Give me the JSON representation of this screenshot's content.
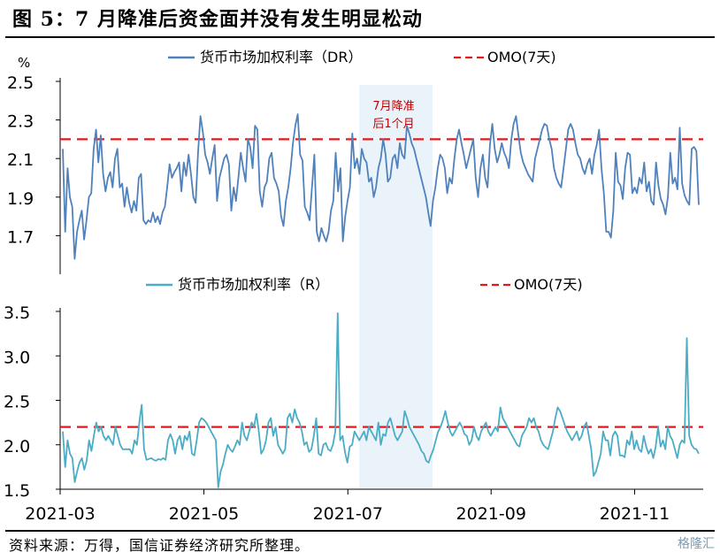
{
  "figure_title": "图 5：7 月降准后资金面并没有发生明显松动",
  "source_note": "资料来源：万得，国信证券经济研究所整理。",
  "watermark": "格隆汇",
  "colors": {
    "dr": "#4f81bd",
    "r": "#4bacc6",
    "omo": "#e31a1c",
    "band": "#eaf3fa",
    "annotation": "#c00000"
  },
  "chart_data": [
    {
      "type": "line",
      "panel": "top",
      "yunit": "%",
      "ylim": [
        1.5,
        2.5
      ],
      "yticks": [
        "2.5",
        "2.3",
        "2.1",
        "1.9",
        "1.7"
      ],
      "series": [
        {
          "name": "货币市场加权利率（DR）",
          "values": [
            2.15,
            1.72,
            2.05,
            1.9,
            1.85,
            1.58,
            1.72,
            1.78,
            1.83,
            1.68,
            1.78,
            1.9,
            1.92,
            2.15,
            2.25,
            2.08,
            2.22,
            2.02,
            1.93,
            2.0,
            2.03,
            1.95,
            2.1,
            2.15,
            1.95,
            1.97,
            1.85,
            1.95,
            1.87,
            1.82,
            1.88,
            1.83,
            2.0,
            2.02,
            1.78,
            1.76,
            1.78,
            1.77,
            1.82,
            1.77,
            1.8,
            1.76,
            1.82,
            1.85,
            1.95,
            2.07,
            2.0,
            2.03,
            2.05,
            2.08,
            1.93,
            2.08,
            2.01,
            2.12,
            2.02,
            1.9,
            1.87,
            2.13,
            2.32,
            2.24,
            2.12,
            2.08,
            2.02,
            2.1,
            2.17,
            1.88,
            2.0,
            2.05,
            2.1,
            2.12,
            2.07,
            1.83,
            1.95,
            1.88,
            2.0,
            2.13,
            2.05,
            1.98,
            2.2,
            2.16,
            2.05,
            2.27,
            2.25,
            1.93,
            1.85,
            1.95,
            1.98,
            2.1,
            2.13,
            2.0,
            1.97,
            1.93,
            1.8,
            1.75,
            1.88,
            1.95,
            2.05,
            2.18,
            2.27,
            2.33,
            2.12,
            2.09,
            1.85,
            1.82,
            1.78,
            1.95,
            2.12,
            1.72,
            1.67,
            1.74,
            1.7,
            1.67,
            1.72,
            1.83,
            1.88,
            2.13,
            1.93,
            2.05,
            1.67,
            1.8,
            1.88,
            1.95,
            2.23,
            2.05,
            2.1,
            2.02,
            2.15,
            2.1,
            2.08,
            1.98,
            2.0,
            1.9,
            1.95,
            2.05,
            2.1,
            2.2,
            2.12,
            1.98,
            2.0,
            2.1,
            2.12,
            2.05,
            2.18,
            2.12,
            2.1,
            2.27,
            2.23,
            2.18,
            2.15,
            2.1,
            2.05,
            2.0,
            1.95,
            1.9,
            1.82,
            1.75,
            1.88,
            1.95,
            2.05,
            2.12,
            2.1,
            2.05,
            1.92,
            2.0,
            1.97,
            2.1,
            2.2,
            2.25,
            2.18,
            2.12,
            2.05,
            2.1,
            2.15,
            2.2,
            2.0,
            1.9,
            2.05,
            2.12,
            2.0,
            1.95,
            2.17,
            2.28,
            2.15,
            2.08,
            2.12,
            2.18,
            2.13,
            2.1,
            2.05,
            2.2,
            2.28,
            2.32,
            2.22,
            2.13,
            2.08,
            2.05,
            2.02,
            2.0,
            1.98,
            2.1,
            2.15,
            2.2,
            2.25,
            2.28,
            2.27,
            2.2,
            2.15,
            2.05,
            2.0,
            1.97,
            1.95,
            2.05,
            2.15,
            2.25,
            2.28,
            2.25,
            2.18,
            2.12,
            2.1,
            2.05,
            2.02,
            2.07,
            2.1,
            2.02,
            2.12,
            2.17,
            2.25,
            2.05,
            1.92,
            1.72,
            1.72,
            1.69,
            1.83,
            2.13,
            1.98,
            1.96,
            1.89,
            2.05,
            2.13,
            2.12,
            1.92,
            1.95,
            1.92,
            2.0,
            1.97,
            2.08,
            1.93,
            1.98,
            1.88,
            1.86,
            2.08,
            1.96,
            1.89,
            1.86,
            1.81,
            1.9,
            2.13,
            1.97,
            2.0,
            1.94,
            2.26,
            1.97,
            1.91,
            1.88,
            1.86,
            2.15,
            2.16,
            2.14,
            1.86
          ]
        },
        {
          "name": "OMO(7天)",
          "values": [
            2.2
          ]
        }
      ]
    },
    {
      "type": "line",
      "panel": "bottom",
      "ylim": [
        1.5,
        3.5
      ],
      "yticks": [
        "3.5",
        "3.0",
        "2.5",
        "2.0",
        "1.5"
      ],
      "xticks": [
        "2021-03",
        "2021-05",
        "2021-07",
        "2021-09",
        "2021-11"
      ],
      "series": [
        {
          "name": "货币市场加权利率（R）",
          "values": [
            2.15,
            1.75,
            2.05,
            1.9,
            1.85,
            1.58,
            1.7,
            1.8,
            1.85,
            1.72,
            1.82,
            2.05,
            1.93,
            2.1,
            2.25,
            2.15,
            2.2,
            2.1,
            2.05,
            2.1,
            2.05,
            2.0,
            2.2,
            2.1,
            2.0,
            1.95,
            1.95,
            1.95,
            1.95,
            1.9,
            2.05,
            2.0,
            2.25,
            2.45,
            1.95,
            1.83,
            1.84,
            1.85,
            1.83,
            1.82,
            1.84,
            1.83,
            1.85,
            1.83,
            2.05,
            2.12,
            2.05,
            1.9,
            2.05,
            2.1,
            1.95,
            2.1,
            2.05,
            2.15,
            1.9,
            1.88,
            2.05,
            2.25,
            2.3,
            2.28,
            2.25,
            2.2,
            2.15,
            2.1,
            2.05,
            1.52,
            1.7,
            1.78,
            1.9,
            2.0,
            1.95,
            1.92,
            1.98,
            2.05,
            2.0,
            2.25,
            2.1,
            2.05,
            2.15,
            2.25,
            2.2,
            2.35,
            2.15,
            1.9,
            1.95,
            2.05,
            2.25,
            2.3,
            2.1,
            2.2,
            2.0,
            1.95,
            1.9,
            1.95,
            2.3,
            2.35,
            2.25,
            2.4,
            2.3,
            2.25,
            2.15,
            2.0,
            2.03,
            1.92,
            1.95,
            2.1,
            2.3,
            1.9,
            1.88,
            2.0,
            2.02,
            1.95,
            1.93,
            2.0,
            2.15,
            3.48,
            2.05,
            2.1,
            1.92,
            1.8,
            1.98,
            2.0,
            2.15,
            2.1,
            2.05,
            2.1,
            2.15,
            2.05,
            2.2,
            2.15,
            2.1,
            2.05,
            2.25,
            2.0,
            2.12,
            2.1,
            2.25,
            2.3,
            2.2,
            2.1,
            2.05,
            2.1,
            2.15,
            2.38,
            2.3,
            2.2,
            2.15,
            2.1,
            2.05,
            2.0,
            1.93,
            1.9,
            1.82,
            1.8,
            1.88,
            1.95,
            2.05,
            2.15,
            2.2,
            2.28,
            2.38,
            2.25,
            2.15,
            2.1,
            2.15,
            2.2,
            2.25,
            2.2,
            2.12,
            2.1,
            2.0,
            2.05,
            2.2,
            2.1,
            2.05,
            2.15,
            2.2,
            2.25,
            2.15,
            2.1,
            2.15,
            2.2,
            2.15,
            2.42,
            2.3,
            2.25,
            2.2,
            2.15,
            2.1,
            2.05,
            2.0,
            1.98,
            2.1,
            2.15,
            2.2,
            2.3,
            2.25,
            2.3,
            2.2,
            2.15,
            2.05,
            2.0,
            1.97,
            1.95,
            2.05,
            2.15,
            2.3,
            2.42,
            2.38,
            2.3,
            2.22,
            2.15,
            2.1,
            2.05,
            2.1,
            2.15,
            2.05,
            2.1,
            2.2,
            2.25,
            2.1,
            1.95,
            1.65,
            1.7,
            1.8,
            1.9,
            2.15,
            2.05,
            2.05,
            1.88,
            2.1,
            2.15,
            2.1,
            1.88,
            1.88,
            1.86,
            2.05,
            2.0,
            2.15,
            1.95,
            2.05,
            1.95,
            1.92,
            2.1,
            1.98,
            1.9,
            1.95,
            1.85,
            1.98,
            2.2,
            1.98,
            2.05,
            1.95,
            2.2,
            2.1,
            2.05,
            1.95,
            1.85,
            2.0,
            2.05,
            2.02,
            3.2,
            2.1,
            2.0,
            1.96,
            1.95,
            1.9
          ]
        },
        {
          "name": "OMO(7天)",
          "values": [
            2.2
          ]
        }
      ]
    }
  ],
  "annotation": {
    "text_line1": "7月降准",
    "text_line2": "后1个月"
  }
}
